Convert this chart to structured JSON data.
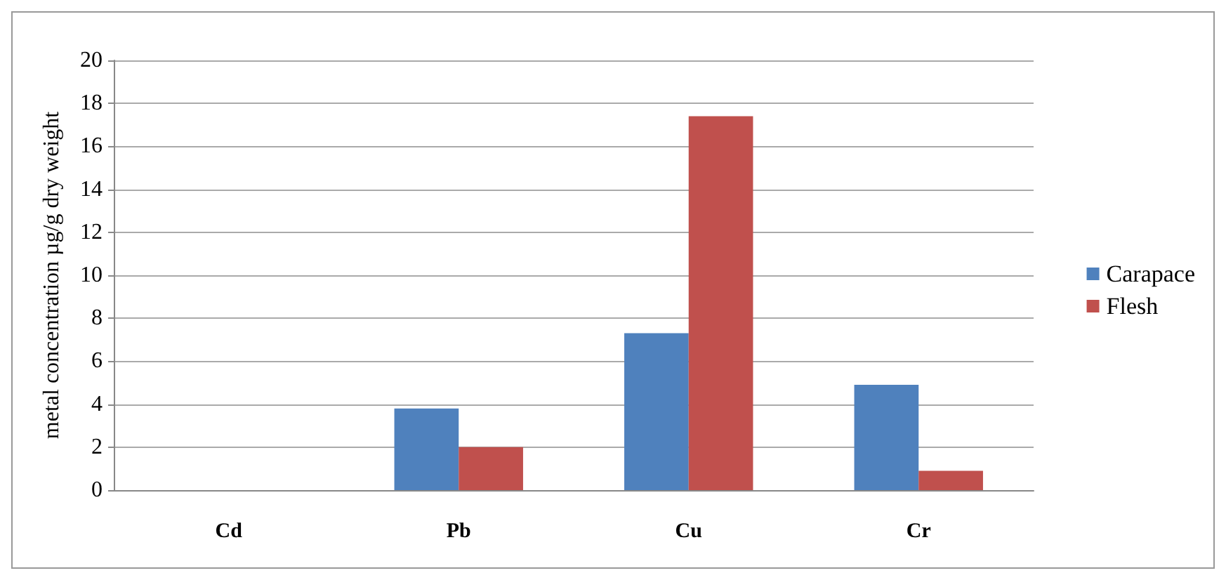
{
  "chart_data": {
    "type": "bar",
    "ylabel": "metal concentration µg/g dry weight",
    "categories": [
      "Cd",
      "Pb",
      "Cu",
      "Cr"
    ],
    "series": [
      {
        "name": "Carapace",
        "color": "#4f81bd",
        "values": [
          0,
          3.8,
          7.3,
          4.9
        ]
      },
      {
        "name": "Flesh",
        "color": "#c0504d",
        "values": [
          0,
          2.0,
          17.4,
          0.9
        ]
      }
    ],
    "ylim": [
      0,
      20
    ],
    "yticks": [
      0,
      2,
      4,
      6,
      8,
      10,
      12,
      14,
      16,
      18,
      20
    ],
    "grid": "y",
    "legend": "right"
  }
}
